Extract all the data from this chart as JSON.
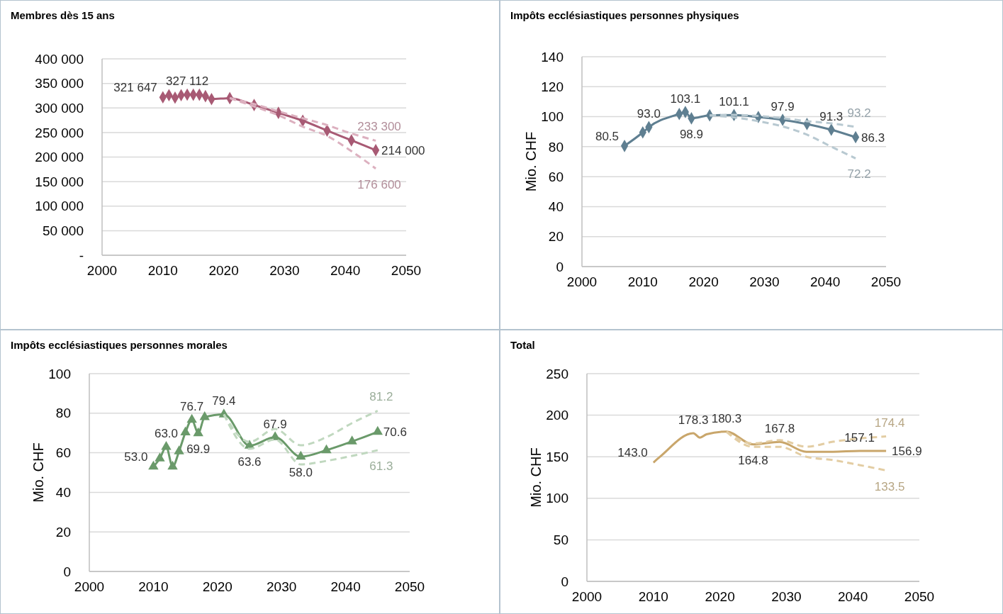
{
  "chart_data": [
    {
      "type": "line",
      "title": "Membres dès 15 ans",
      "xlim": [
        2000,
        2050
      ],
      "xticks": [
        2000,
        2010,
        2020,
        2030,
        2040,
        2050
      ],
      "ylim": [
        0,
        400000
      ],
      "yticks": [
        {
          "value": 0,
          "label": "-"
        },
        {
          "value": 50000,
          "label": "50 000"
        },
        {
          "value": 100000,
          "label": "100 000"
        },
        {
          "value": 150000,
          "label": "150 000"
        },
        {
          "value": 200000,
          "label": "200 000"
        },
        {
          "value": 250000,
          "label": "250 000"
        },
        {
          "value": 300000,
          "label": "300 000"
        },
        {
          "value": 350000,
          "label": "350 000"
        },
        {
          "value": 400000,
          "label": "400 000"
        }
      ],
      "grid": "y",
      "series": [
        {
          "color": "#a85a74",
          "marker": "diamond",
          "line_style": "solid",
          "x": [
            2010,
            2011,
            2012,
            2013,
            2014,
            2015,
            2016,
            2017,
            2018,
            2021,
            2025,
            2029,
            2033,
            2037,
            2041,
            2045
          ],
          "values": [
            321647,
            326000,
            321000,
            326000,
            327112,
            327000,
            327000,
            324000,
            318000,
            320000,
            306000,
            290000,
            274000,
            254000,
            234000,
            214000
          ],
          "value_labels": [
            "321 647",
            null,
            null,
            null,
            "327 112",
            null,
            null,
            null,
            null,
            null,
            null,
            null,
            null,
            null,
            null,
            "214 000"
          ]
        },
        {
          "color": "#dcb0bf",
          "marker": "none",
          "line_style": "dashed",
          "x": [
            2021,
            2025,
            2029,
            2033,
            2037,
            2041,
            2045
          ],
          "values": [
            320000,
            308000,
            293000,
            279000,
            265000,
            248000,
            233300
          ],
          "value_labels": [
            null,
            null,
            null,
            null,
            null,
            null,
            "233 300"
          ]
        },
        {
          "color": "#dcb0bf",
          "marker": "none",
          "line_style": "dashed",
          "x": [
            2021,
            2025,
            2029,
            2033,
            2037,
            2041,
            2045
          ],
          "values": [
            320000,
            303000,
            285000,
            262000,
            243000,
            212000,
            176600
          ],
          "value_labels": [
            null,
            null,
            null,
            null,
            null,
            null,
            "176 600"
          ]
        }
      ]
    },
    {
      "type": "line",
      "title": "Impôts ecclésiastiques personnes physiques",
      "ylabel": "Mio. CHF",
      "xlim": [
        2000,
        2050
      ],
      "xticks": [
        2000,
        2010,
        2020,
        2030,
        2040,
        2050
      ],
      "ylim": [
        0,
        140
      ],
      "yticks": [
        0,
        20,
        40,
        60,
        80,
        100,
        120,
        140
      ],
      "grid": "y",
      "series": [
        {
          "color": "#5f7f91",
          "marker": "diamond",
          "line_style": "solid",
          "x": [
            2007,
            2010,
            2011,
            2016,
            2017,
            2018,
            2021,
            2025,
            2029,
            2033,
            2037,
            2041,
            2045
          ],
          "values": [
            80.5,
            89.5,
            93.0,
            101.8,
            103.1,
            98.9,
            100.9,
            101.1,
            99.8,
            97.9,
            95.1,
            91.3,
            86.3
          ],
          "value_labels": [
            "80.5",
            null,
            "93.0",
            null,
            "103.1",
            "98.9",
            null,
            "101.1",
            null,
            "97.9",
            null,
            "91.3",
            "86.3"
          ]
        },
        {
          "color": "#b8c9d1",
          "marker": "none",
          "line_style": "dashed",
          "x": [
            2021,
            2025,
            2029,
            2033,
            2037,
            2041,
            2045
          ],
          "values": [
            100.9,
            101.2,
            100.5,
            99,
            97,
            95.5,
            93.2
          ],
          "value_labels": [
            null,
            null,
            null,
            null,
            null,
            null,
            "93.2"
          ]
        },
        {
          "color": "#b8c9d1",
          "marker": "none",
          "line_style": "dashed",
          "x": [
            2021,
            2025,
            2029,
            2033,
            2037,
            2041,
            2045
          ],
          "values": [
            100.9,
            99.5,
            97,
            93.5,
            88,
            80,
            72.2
          ],
          "value_labels": [
            null,
            null,
            null,
            null,
            null,
            null,
            "72.2"
          ]
        }
      ]
    },
    {
      "type": "line",
      "title": "Impôts ecclésiastiques personnes morales",
      "ylabel": "Mio. CHF",
      "xlim": [
        2000,
        2050
      ],
      "xticks": [
        2000,
        2010,
        2020,
        2030,
        2040,
        2050
      ],
      "ylim": [
        0,
        100
      ],
      "yticks": [
        0,
        20,
        40,
        60,
        80,
        100
      ],
      "grid": "y",
      "series": [
        {
          "color": "#6a9a6a",
          "marker": "triangle",
          "line_style": "solid",
          "x": [
            2010,
            2011,
            2012,
            2013,
            2014,
            2015,
            2016,
            2017,
            2018,
            2021,
            2025,
            2029,
            2033,
            2037,
            2041,
            2045
          ],
          "values": [
            53.0,
            57.1,
            63.0,
            53.0,
            60.7,
            70.3,
            76.7,
            69.9,
            78.0,
            79.4,
            63.6,
            67.9,
            58.0,
            61.3,
            65.7,
            70.6
          ],
          "value_labels": [
            "53.0",
            null,
            "63.0",
            null,
            null,
            null,
            "76.7",
            "69.9",
            null,
            "79.4",
            "63.6",
            "67.9",
            "58.0",
            null,
            null,
            "70.6"
          ]
        },
        {
          "color": "#c0d8bf",
          "marker": "none",
          "line_style": "dashed",
          "x": [
            2021,
            2025,
            2029,
            2033,
            2037,
            2041,
            2045
          ],
          "values": [
            79.4,
            65.5,
            72,
            63.8,
            67.9,
            75,
            81.2
          ],
          "value_labels": [
            null,
            null,
            null,
            null,
            null,
            null,
            "81.2"
          ]
        },
        {
          "color": "#c0d8bf",
          "marker": "none",
          "line_style": "dashed",
          "x": [
            2021,
            2025,
            2029,
            2033,
            2037,
            2041,
            2045
          ],
          "values": [
            79.4,
            62,
            66.7,
            54.1,
            55.9,
            58.4,
            61.3
          ],
          "value_labels": [
            null,
            null,
            null,
            null,
            null,
            null,
            "61.3"
          ]
        }
      ]
    },
    {
      "type": "line",
      "title": "Total",
      "ylabel": "Mio. CHF",
      "xlim": [
        2000,
        2050
      ],
      "xticks": [
        2000,
        2010,
        2020,
        2030,
        2040,
        2050
      ],
      "ylim": [
        0,
        250
      ],
      "yticks": [
        0,
        50,
        100,
        150,
        200,
        250
      ],
      "grid": "y",
      "series": [
        {
          "color": "#c9a66b",
          "marker": "none",
          "line_style": "solid",
          "x": [
            2010,
            2011,
            2016,
            2017,
            2018,
            2021,
            2025,
            2029,
            2033,
            2037,
            2041,
            2045
          ],
          "values": [
            143.0,
            150,
            178.3,
            173,
            177,
            180.3,
            164.8,
            167.8,
            156,
            156,
            157.1,
            156.9
          ],
          "value_labels": [
            "143.0",
            null,
            "178.3",
            null,
            null,
            "180.3",
            "164.8",
            "167.8",
            null,
            null,
            "157.1",
            "156.9"
          ]
        },
        {
          "color": "#e3cda3",
          "marker": "none",
          "line_style": "dashed",
          "x": [
            2021,
            2025,
            2029,
            2033,
            2037,
            2041,
            2045
          ],
          "values": [
            180,
            166,
            170,
            162,
            168,
            172,
            174.4
          ],
          "value_labels": [
            null,
            null,
            null,
            null,
            null,
            null,
            "174.4"
          ]
        },
        {
          "color": "#e3cda3",
          "marker": "none",
          "line_style": "dashed",
          "x": [
            2021,
            2025,
            2029,
            2033,
            2037,
            2041,
            2045
          ],
          "values": [
            180,
            162,
            162,
            150,
            146,
            140,
            133.5
          ],
          "value_labels": [
            null,
            null,
            null,
            null,
            null,
            null,
            "133.5"
          ]
        }
      ]
    }
  ]
}
